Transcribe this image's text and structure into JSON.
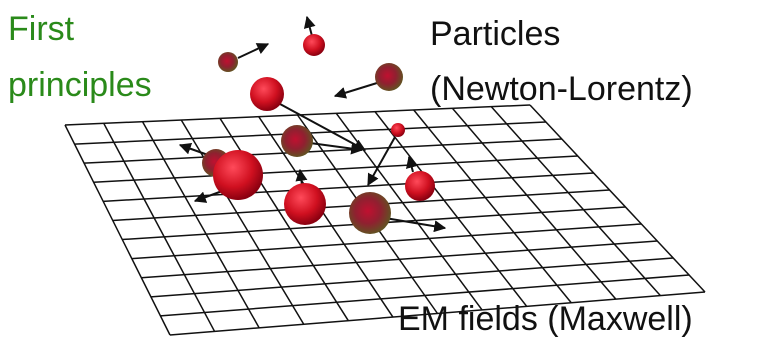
{
  "labels": {
    "title": [
      "First",
      "principles"
    ],
    "particles": [
      "Particles",
      "(Newton-Lorentz)"
    ],
    "fields": "EM fields (Maxwell)"
  }
}
